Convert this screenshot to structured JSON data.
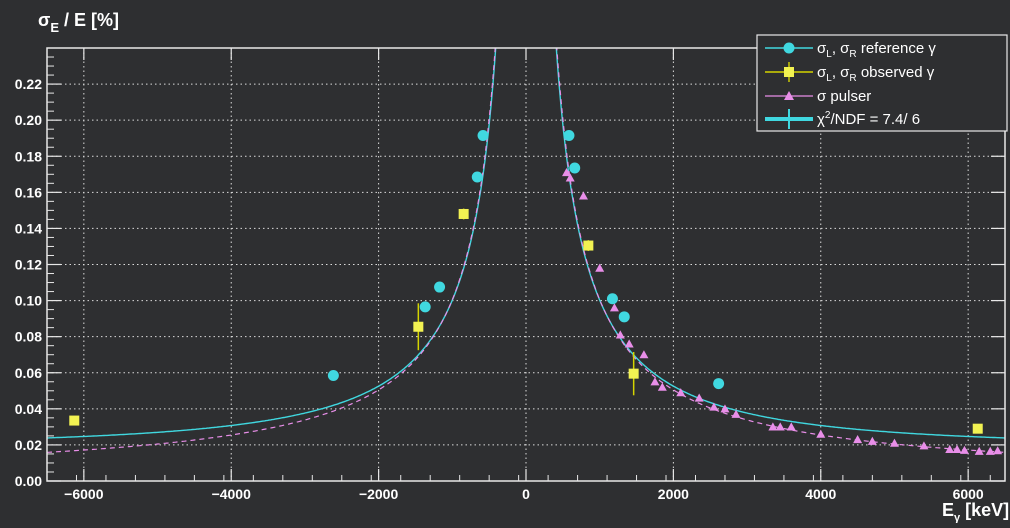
{
  "chart_data": {
    "type": "scatter",
    "title": "",
    "ylabel": "σ_E / E [%]",
    "xlabel": "E_γ [keV]",
    "xlim": [
      -6500,
      6500
    ],
    "ylim": [
      0,
      0.24
    ],
    "x_ticks": [
      -6000,
      -4000,
      -2000,
      0,
      2000,
      4000,
      6000
    ],
    "x_tick_labels": [
      "−6000",
      "−4000",
      "−2000",
      "0",
      "2000",
      "4000",
      "6000"
    ],
    "y_ticks": [
      0,
      0.02,
      0.04,
      0.06,
      0.08,
      0.1,
      0.12,
      0.14,
      0.16,
      0.18,
      0.2,
      0.22
    ],
    "y_tick_labels": [
      "0.00",
      "0.02",
      "0.04",
      "0.06",
      "0.08",
      "0.10",
      "0.12",
      "0.14",
      "0.16",
      "0.18",
      "0.20",
      "0.22"
    ],
    "grid": true,
    "legend_position": "top-right",
    "series": [
      {
        "name": "σ_L, σ_R reference γ",
        "legend": {
          "main": "σ",
          "sub1": "L",
          "mid": ", σ",
          "sub2": "R",
          "rest": " reference γ"
        },
        "marker": "circle",
        "color": "#40d8e0",
        "points": [
          [
            -2614,
            0.0585
          ],
          [
            -1368,
            0.0965
          ],
          [
            -1173,
            0.1075
          ],
          [
            -661,
            0.1685
          ],
          [
            -583,
            0.1915
          ],
          [
            583,
            0.1915
          ],
          [
            661,
            0.1735
          ],
          [
            1173,
            0.101
          ],
          [
            1333,
            0.091
          ],
          [
            2614,
            0.054
          ]
        ]
      },
      {
        "name": "σ_L, σ_R observed γ",
        "legend": {
          "main": "σ",
          "sub1": "L",
          "mid": ", σ",
          "sub2": "R",
          "rest": " observed γ"
        },
        "marker": "square",
        "color": "#f2f252",
        "error_color": "#d4d400",
        "points": [
          [
            -6130,
            0.0335,
            0.002
          ],
          [
            -1461,
            0.0855,
            0.013
          ],
          [
            -846,
            0.148,
            0.003
          ],
          [
            846,
            0.1305,
            0.003
          ],
          [
            1461,
            0.0595,
            0.012
          ],
          [
            6130,
            0.029,
            0.002
          ]
        ]
      },
      {
        "name": "σ pulser",
        "legend": {
          "main": "σ",
          "sub1": "",
          "mid": "",
          "sub2": "",
          "rest": " pulser"
        },
        "marker": "triangle",
        "color": "#e88ee8",
        "points": [
          [
            550,
            0.171
          ],
          [
            600,
            0.168
          ],
          [
            780,
            0.158
          ],
          [
            1000,
            0.118
          ],
          [
            1200,
            0.096
          ],
          [
            1280,
            0.081
          ],
          [
            1400,
            0.076
          ],
          [
            1600,
            0.07
          ],
          [
            1750,
            0.055
          ],
          [
            1850,
            0.052
          ],
          [
            2100,
            0.049
          ],
          [
            2350,
            0.046
          ],
          [
            2550,
            0.041
          ],
          [
            2700,
            0.04
          ],
          [
            2850,
            0.037
          ],
          [
            3350,
            0.03
          ],
          [
            3450,
            0.03
          ],
          [
            3600,
            0.03
          ],
          [
            4000,
            0.026
          ],
          [
            4500,
            0.023
          ],
          [
            4700,
            0.022
          ],
          [
            5000,
            0.021
          ],
          [
            5400,
            0.0195
          ],
          [
            5750,
            0.0175
          ],
          [
            5850,
            0.0175
          ],
          [
            5950,
            0.017
          ],
          [
            6150,
            0.0165
          ],
          [
            6300,
            0.0165
          ],
          [
            6400,
            0.0168
          ]
        ]
      }
    ],
    "fit_label": "χ²/NDF =   7.4/  6",
    "fit_legend": {
      "chi": "χ",
      "sup": "2",
      "rest": "/NDF =   7.4/  6"
    },
    "fit_color": "#40d8e0",
    "pulser_fit_color": "#e88ee8"
  }
}
